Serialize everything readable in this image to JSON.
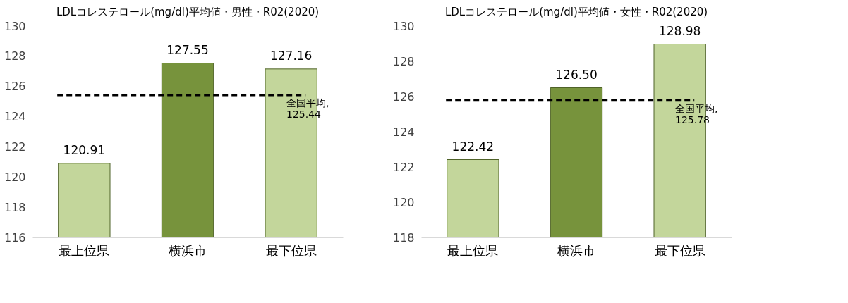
{
  "chart_data": [
    {
      "type": "bar",
      "title": "LDLコレステロール(mg/dl)平均値・男性・R02(2020)",
      "categories": [
        "最上位県",
        "横浜市",
        "最下位県"
      ],
      "values": [
        120.91,
        127.55,
        127.16
      ],
      "value_labels": [
        "120.91",
        "127.55",
        "127.16"
      ],
      "colors": [
        "#c3d69b",
        "#77933c",
        "#c3d69b"
      ],
      "ylim": [
        116,
        130
      ],
      "yticks": [
        116,
        118,
        120,
        122,
        124,
        126,
        128,
        130
      ],
      "grid": false,
      "ref_lines": [
        {
          "axis": "y",
          "value": 125.44,
          "label": "全国平均,\n125.44",
          "color": "#000000",
          "line_style": "dashed"
        }
      ]
    },
    {
      "type": "bar",
      "title": "LDLコレステロール(mg/dl)平均値・女性・R02(2020)",
      "categories": [
        "最上位県",
        "横浜市",
        "最下位県"
      ],
      "values": [
        122.42,
        126.5,
        128.98
      ],
      "value_labels": [
        "122.42",
        "126.50",
        "128.98"
      ],
      "colors": [
        "#c3d69b",
        "#77933c",
        "#c3d69b"
      ],
      "ylim": [
        118,
        130
      ],
      "yticks": [
        118,
        120,
        122,
        124,
        126,
        128,
        130
      ],
      "grid": false,
      "ref_lines": [
        {
          "axis": "y",
          "value": 125.78,
          "label": "全国平均,\n125.78",
          "color": "#000000",
          "line_style": "dashed"
        }
      ]
    }
  ]
}
